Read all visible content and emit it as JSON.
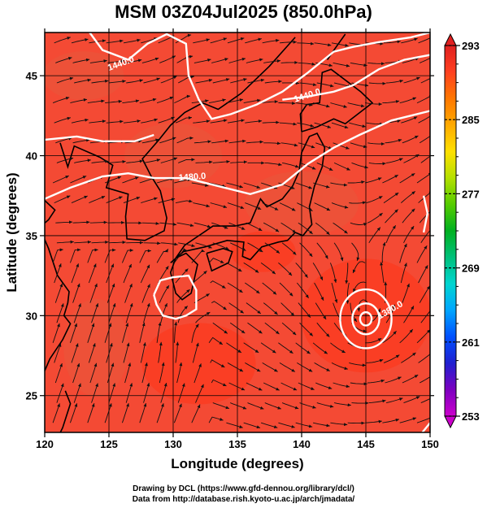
{
  "title": "MSM 03Z04Jul2025 (850.0hPa)",
  "x_axis": {
    "label": "Longitude (degrees)",
    "ticks": [
      "120",
      "125",
      "130",
      "135",
      "140",
      "145",
      "150"
    ],
    "range": [
      120,
      150
    ]
  },
  "y_axis": {
    "label": "Latitude  (degrees)",
    "ticks": [
      "25",
      "30",
      "35",
      "40",
      "45"
    ],
    "range": [
      22.7,
      47.7
    ]
  },
  "colorbar": {
    "ticks": [
      "253",
      "261",
      "269",
      "277",
      "285",
      "293"
    ],
    "min": 253,
    "max": 293,
    "colors": [
      "#cc00cc",
      "#7d00c0",
      "#2020d0",
      "#0050ff",
      "#00a6ff",
      "#00d5d0",
      "#00c07a",
      "#00b020",
      "#55cc00",
      "#b5e000",
      "#ffe000",
      "#ffaa00",
      "#ff7700",
      "#ff4020",
      "#e02020"
    ]
  },
  "contours": [
    {
      "label": "1440.0",
      "lat_labels": [
        45.6
      ]
    },
    {
      "label": "1440.0",
      "lat_labels": [
        43.6
      ]
    },
    {
      "label": "1480.0",
      "lat_labels": [
        38.5
      ]
    },
    {
      "label": "1380.0",
      "lat_labels": [
        29.5
      ]
    }
  ],
  "low_center": {
    "lon": 145,
    "lat": 29.8
  },
  "field_colors": {
    "base": "#f44a34",
    "warm": "#ff3418",
    "cool": "#e8583c",
    "coast": "#000000",
    "contour": "#ffffff",
    "streamline": "#111111"
  },
  "footer": {
    "line1": "Drawing by DCL (https://www.gfd-dennou.org/library/dcl/)",
    "line2": "Data from http://database.rish.kyoto-u.ac.jp/arch/jmadata/"
  }
}
